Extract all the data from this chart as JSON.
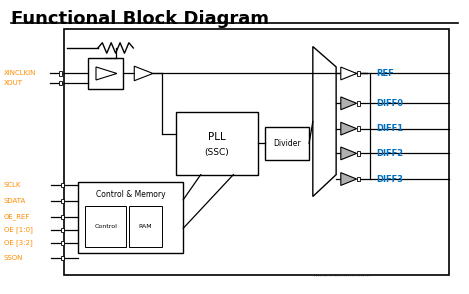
{
  "title": "Functional Block Diagram",
  "title_fontsize": 13,
  "title_fontweight": "bold",
  "bg_color": "#ffffff",
  "line_color": "#000000",
  "orange_color": "#FF8C00",
  "blue_color": "#0070C0",
  "input_labels_left": [
    "XINCLKIN",
    "XOUT"
  ],
  "input_labels_bottom": [
    "SCLK",
    "SDATA",
    "OE_REF",
    "OE [1:0]",
    "OE [3:2]",
    "SSON"
  ],
  "output_labels_right": [
    "REF",
    "DIFF0",
    "DIFF1",
    "DIFF2",
    "DIFF3"
  ]
}
